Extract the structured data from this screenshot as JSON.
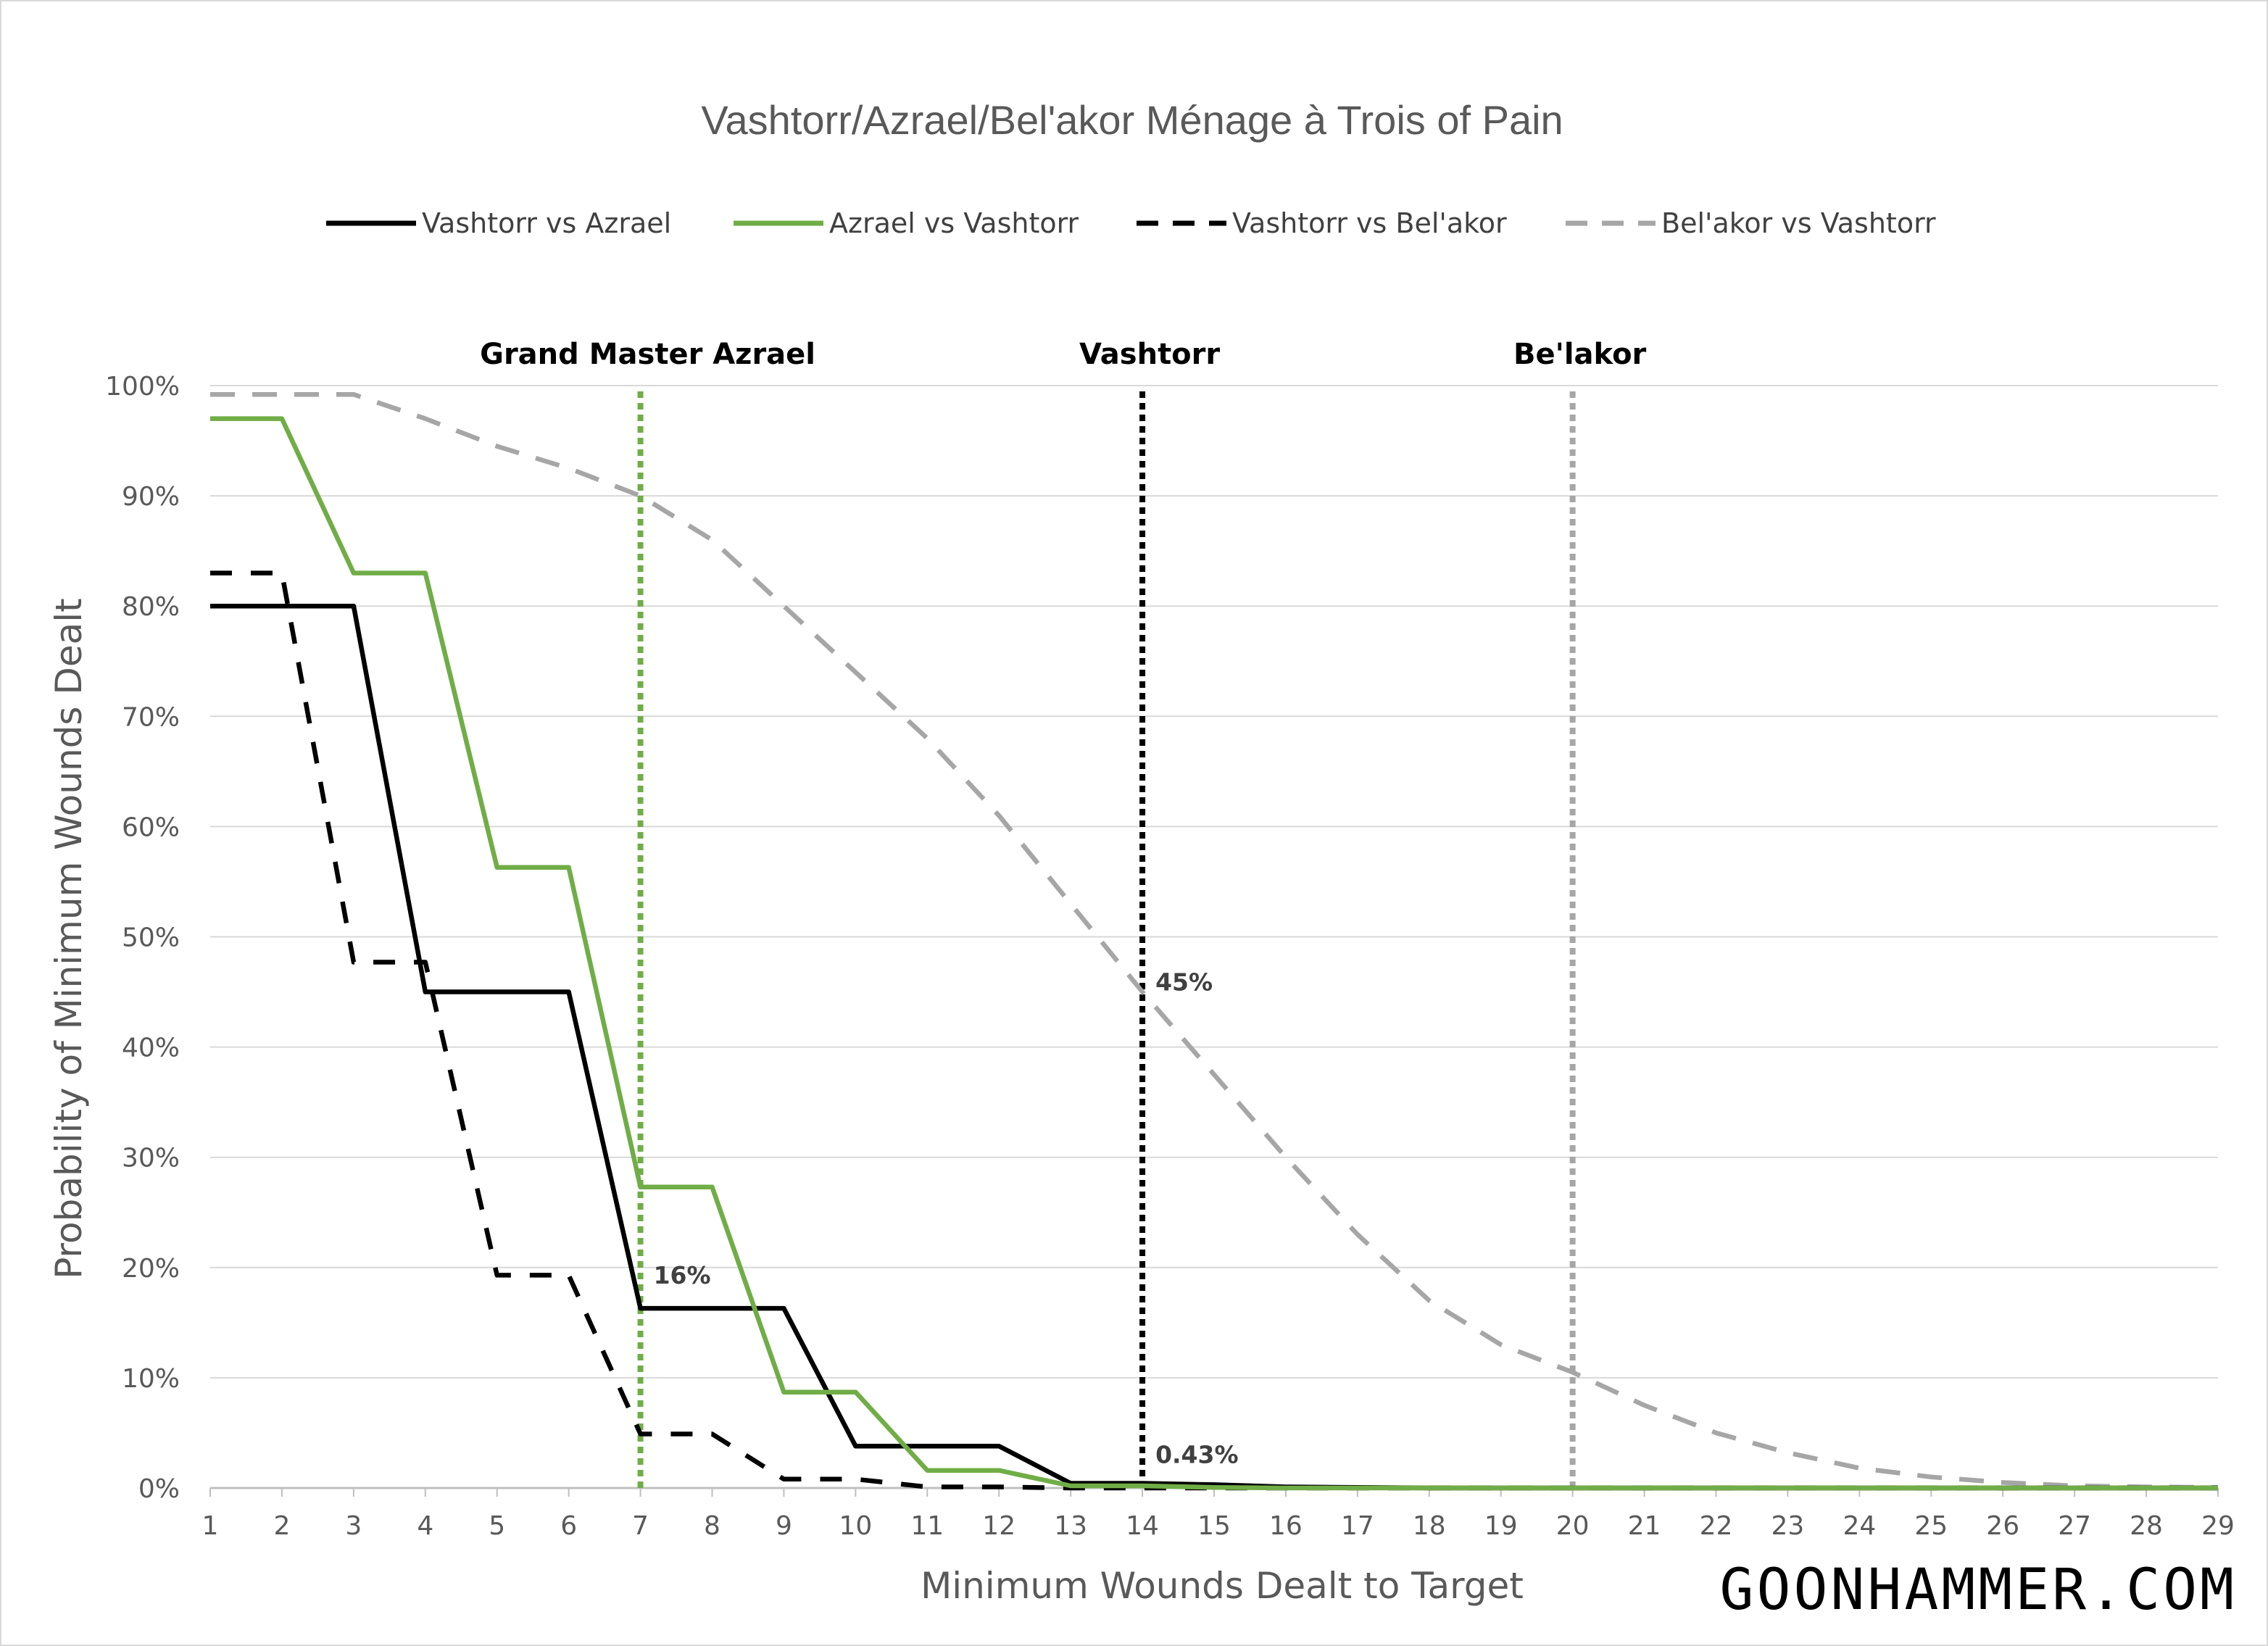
{
  "chart_data": {
    "type": "line",
    "title": "Vashtorr/Azrael/Bel'akor Ménage à Trois of Pain",
    "xlabel": "Minimum Wounds Dealt to Target",
    "ylabel": "Probability of Minimum Wounds Dealt",
    "xlim": [
      1,
      29
    ],
    "ylim": [
      0,
      100
    ],
    "x": [
      1,
      2,
      3,
      4,
      5,
      6,
      7,
      8,
      9,
      10,
      11,
      12,
      13,
      14,
      15,
      16,
      17,
      18,
      19,
      20,
      21,
      22,
      23,
      24,
      25,
      26,
      27,
      28,
      29
    ],
    "x_tick_labels": [
      "1",
      "2",
      "3",
      "4",
      "5",
      "6",
      "7",
      "8",
      "9",
      "10",
      "11",
      "12",
      "13",
      "14",
      "15",
      "16",
      "17",
      "18",
      "19",
      "20",
      "21",
      "22",
      "23",
      "24",
      "25",
      "26",
      "27",
      "28",
      "29"
    ],
    "y_ticks": [
      0,
      10,
      20,
      30,
      40,
      50,
      60,
      70,
      80,
      90,
      100
    ],
    "y_tick_labels": [
      "0%",
      "10%",
      "20%",
      "30%",
      "40%",
      "50%",
      "60%",
      "70%",
      "80%",
      "90%",
      "100%"
    ],
    "grid": true,
    "legend_position": "top",
    "series": [
      {
        "name": "Vashtorr vs Azrael",
        "color": "#000000",
        "style": "solid",
        "values": [
          80,
          80,
          80,
          45,
          45,
          45,
          16.3,
          16.3,
          16.3,
          3.8,
          3.8,
          3.8,
          0.43,
          0.43,
          0.3,
          0.1,
          0.05,
          0,
          0,
          0,
          0,
          0,
          0,
          0,
          0,
          0,
          0,
          0,
          0
        ]
      },
      {
        "name": "Azrael vs Vashtorr",
        "color": "#70ad47",
        "style": "solid",
        "values": [
          97,
          97,
          83,
          83,
          56.3,
          56.3,
          27.3,
          27.3,
          8.7,
          8.7,
          1.6,
          1.6,
          0.2,
          0.2,
          0.05,
          0,
          0,
          0,
          0,
          0,
          0,
          0,
          0,
          0,
          0,
          0,
          0,
          0,
          0
        ]
      },
      {
        "name": "Vashtorr vs Bel'akor",
        "color": "#000000",
        "style": "dashed",
        "values": [
          83,
          83,
          47.7,
          47.7,
          19.3,
          19.3,
          4.9,
          4.9,
          0.8,
          0.8,
          0.1,
          0.1,
          0,
          0,
          0,
          0,
          0,
          0,
          0,
          0,
          0,
          0,
          0,
          0,
          0,
          0,
          0,
          0,
          0
        ]
      },
      {
        "name": "Bel'akor vs Vashtorr",
        "color": "#a6a6a6",
        "style": "dashed",
        "values": [
          99.2,
          99.2,
          99.2,
          97,
          94.5,
          92.5,
          90,
          86,
          80,
          74,
          68,
          61,
          53,
          45,
          37.5,
          30,
          23,
          17,
          13,
          10.5,
          7.5,
          5,
          3.2,
          1.8,
          1,
          0.5,
          0.2,
          0.1,
          0.05
        ]
      }
    ],
    "markers": [
      {
        "label": "Grand Master Azrael",
        "x": 7,
        "color": "#70ad47"
      },
      {
        "label": "Vashtorr",
        "x": 14,
        "color": "#000000"
      },
      {
        "label": "Be'lakor",
        "x": 20,
        "color": "#a6a6a6"
      }
    ],
    "data_labels": [
      {
        "text": "16%",
        "x": 7,
        "y": 16.3
      },
      {
        "text": "45%",
        "x": 14,
        "y": 45
      },
      {
        "text": "0.43%",
        "x": 14,
        "y": 0.43
      }
    ]
  },
  "branding": {
    "text": "GOONHAMMER.COM"
  }
}
